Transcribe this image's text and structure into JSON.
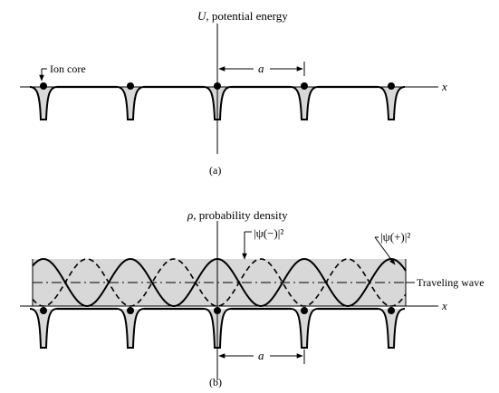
{
  "panel_a": {
    "axis_label_symbol": "U",
    "axis_label_text": ", potential energy",
    "ion_core_label": "Ion core",
    "spacing_label": "a",
    "x_label": "x",
    "caption": "(a)"
  },
  "panel_b": {
    "axis_label_symbol": "ρ",
    "axis_label_text": ", probability density",
    "psi_minus_label": "|ψ(−)|²",
    "psi_plus_label": "|ψ(+)|²",
    "traveling_wave_label": "Traveling wave",
    "spacing_label": "a",
    "x_label": "x",
    "caption": "(b)"
  }
}
